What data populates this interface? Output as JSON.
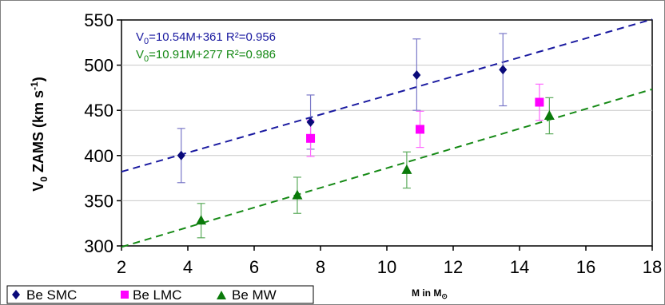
{
  "chart_data": {
    "type": "scatter",
    "xlabel_main": "M in M",
    "xlabel_symbol": "⊙",
    "ylabel_main": "V",
    "ylabel_sub": "0",
    "ylabel_rest": " ZAMS (km s",
    "ylabel_sup": "-1",
    "ylabel_close": ")",
    "xlim": [
      2,
      18
    ],
    "ylim": [
      300,
      550
    ],
    "xticks": [
      "2",
      "4",
      "6",
      "8",
      "10",
      "12",
      "14",
      "16",
      "18"
    ],
    "yticks": [
      "300",
      "350",
      "400",
      "450",
      "500",
      "550"
    ],
    "fits": [
      {
        "prefix": "V",
        "sub": "0",
        "rest": "=10.54M+361 R²=0.956",
        "slope": 10.54,
        "intercept": 361,
        "color": "#1a1aa0"
      },
      {
        "prefix": "V",
        "sub": "0",
        "rest": "=10.91M+277 R²=0.986",
        "slope": 10.91,
        "intercept": 277,
        "color": "#168a16"
      }
    ],
    "series": [
      {
        "name": "Be SMC",
        "marker": "diamond",
        "color": "#0a0a7a",
        "errcolor": "#7a78c8",
        "points": [
          {
            "x": 3.8,
            "y": 400,
            "lo": 370,
            "hi": 430
          },
          {
            "x": 7.7,
            "y": 437,
            "lo": 407,
            "hi": 467
          },
          {
            "x": 10.9,
            "y": 489,
            "lo": 450,
            "hi": 529
          },
          {
            "x": 13.5,
            "y": 495,
            "lo": 455,
            "hi": 535
          }
        ]
      },
      {
        "name": "Be LMC",
        "marker": "square",
        "color": "#ff00ff",
        "errcolor": "#ff66ff",
        "points": [
          {
            "x": 7.7,
            "y": 419,
            "lo": 399,
            "hi": 439
          },
          {
            "x": 11.0,
            "y": 429,
            "lo": 409,
            "hi": 449
          },
          {
            "x": 14.6,
            "y": 459,
            "lo": 439,
            "hi": 479
          }
        ]
      },
      {
        "name": "Be MW",
        "marker": "triangle",
        "color": "#0a7a0a",
        "errcolor": "#5aaa5a",
        "points": [
          {
            "x": 4.4,
            "y": 328,
            "lo": 309,
            "hi": 347
          },
          {
            "x": 7.3,
            "y": 356,
            "lo": 336,
            "hi": 376
          },
          {
            "x": 10.6,
            "y": 384,
            "lo": 364,
            "hi": 404
          },
          {
            "x": 14.9,
            "y": 444,
            "lo": 424,
            "hi": 464
          }
        ]
      }
    ]
  }
}
